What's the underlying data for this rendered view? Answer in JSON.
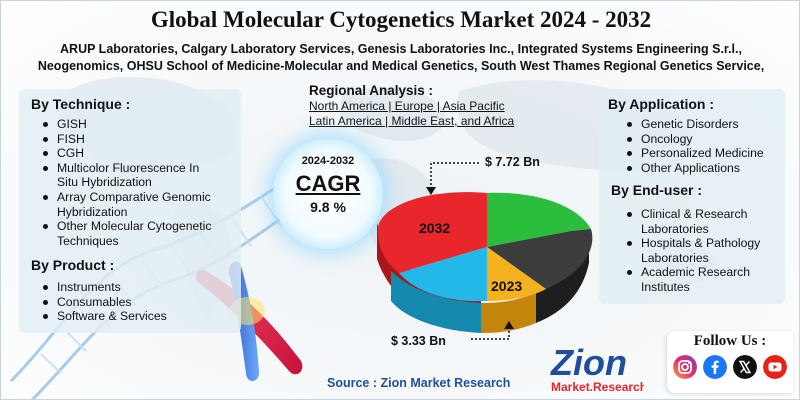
{
  "title": "Global Molecular Cytogenetics Market 2024 - 2032",
  "companies_line1": "ARUP Laboratories, Calgary Laboratory Services, Genesis Laboratories Inc., Integrated Systems Engineering S.r.l.,",
  "companies_line2": "Neogenomics, OHSU School of Medicine-Molecular and Medical Genetics, South West Thames Regional Genetics Service,",
  "technique": {
    "heading": "By Technique :",
    "items": [
      "GISH",
      "FISH",
      "CGH",
      "Multicolor Fluorescence In",
      "Situ Hybridization",
      "Array Comparative Genomic",
      "Hybridization",
      "Other Molecular Cytogenetic",
      "Techniques"
    ]
  },
  "product": {
    "heading": "By Product :",
    "items": [
      "Instruments",
      "Consumables",
      "Software & Services"
    ]
  },
  "regional": {
    "heading": "Regional Analysis :",
    "line1": "North America | Europe | Asia Pacific",
    "line2": "Latin America | Middle East, and Africa"
  },
  "cagr": {
    "years": "2024-2032",
    "label": "CAGR",
    "value": "9.8 %"
  },
  "pie": {
    "label_2032": "2032",
    "label_2023": "2023",
    "value_2032": "$ 7.72 Bn",
    "value_2023": "$ 3.33 Bn",
    "colors": [
      "#e8262b",
      "#2bbd3c",
      "#3c3c3c",
      "#f5b21e",
      "#22b8e8"
    ]
  },
  "application": {
    "heading": "By Application :",
    "items": [
      "Genetic Disorders",
      "Oncology",
      "Personalized Medicine",
      "Other Applications"
    ]
  },
  "enduser": {
    "heading": "By End-user :",
    "items": [
      "Clinical & Research",
      "Laboratories",
      "Hospitals & Pathology",
      "Laboratories",
      "Academic Research",
      "Institutes"
    ]
  },
  "source": "Source : Zion Market Research",
  "logo": {
    "main": "Zion",
    "sub": "Market.Research"
  },
  "follow": {
    "label": "Follow Us :",
    "icons": [
      "instagram-icon",
      "facebook-icon",
      "x-icon",
      "youtube-icon"
    ]
  }
}
